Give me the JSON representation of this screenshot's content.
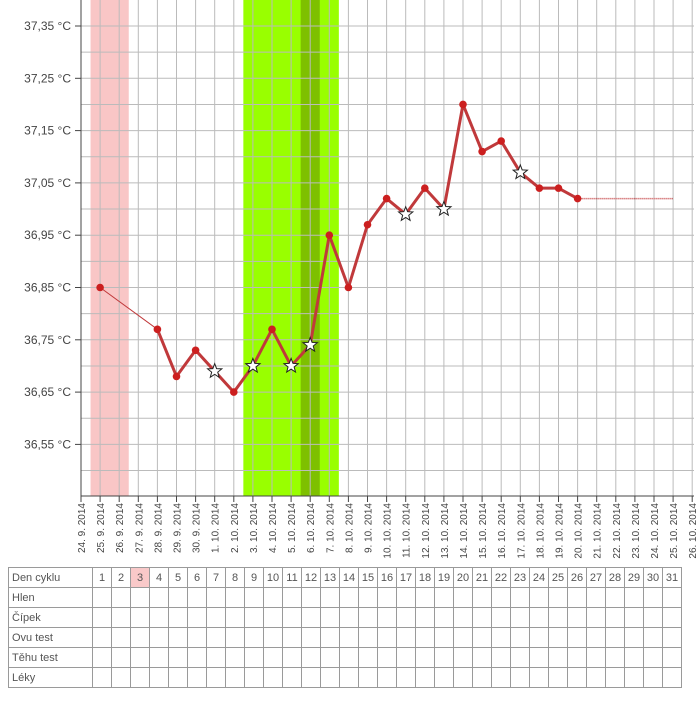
{
  "chart_data": {
    "type": "line",
    "y_tick_labels": [
      "37,35 °C",
      "37,25 °C",
      "37,15 °C",
      "37,05 °C",
      "36,95 °C",
      "36,85 °C",
      "36,75 °C",
      "36,65 °C",
      "36,55 °C"
    ],
    "ylim": [
      36.45,
      37.39
    ],
    "x_tick_labels": [
      "24. 9. 2014",
      "25. 9. 2014",
      "26. 9. 2014",
      "27. 9. 2014",
      "28. 9. 2014",
      "29. 9. 2014",
      "30. 9. 2014",
      "1. 10. 2014",
      "2. 10. 2014",
      "3. 10. 2014",
      "4. 10. 2014",
      "5. 10. 2014",
      "6. 10. 2014",
      "7. 10. 2014",
      "8. 10. 2014",
      "9. 10. 2014",
      "10. 10. 2014",
      "11. 10. 2014",
      "12. 10. 2014",
      "13. 10. 2014",
      "14. 10. 2014",
      "15. 10. 2014",
      "16. 10. 2014",
      "17. 10. 2014",
      "18. 10. 2014",
      "19. 10. 2014",
      "20. 10. 2014",
      "21. 10. 2014",
      "22. 10. 2014",
      "23. 10. 2014",
      "24. 10. 2014",
      "25. 10. 2014",
      "26. 10. 2014"
    ],
    "grid": true,
    "series": [
      {
        "points": [
          {
            "x": "25. 9. 2014",
            "y": 36.85,
            "marker": "dot"
          },
          {
            "x": "28. 9. 2014",
            "y": 36.77,
            "marker": "dot"
          },
          {
            "x": "29. 9. 2014",
            "y": 36.68,
            "marker": "dot"
          },
          {
            "x": "30. 9. 2014",
            "y": 36.73,
            "marker": "dot"
          },
          {
            "x": "1. 10. 2014",
            "y": 36.69,
            "marker": "star"
          },
          {
            "x": "2. 10. 2014",
            "y": 36.65,
            "marker": "dot"
          },
          {
            "x": "3. 10. 2014",
            "y": 36.7,
            "marker": "star"
          },
          {
            "x": "4. 10. 2014",
            "y": 36.77,
            "marker": "dot"
          },
          {
            "x": "5. 10. 2014",
            "y": 36.7,
            "marker": "star"
          },
          {
            "x": "6. 10. 2014",
            "y": 36.74,
            "marker": "star"
          },
          {
            "x": "7. 10. 2014",
            "y": 36.95,
            "marker": "dot"
          },
          {
            "x": "8. 10. 2014",
            "y": 36.85,
            "marker": "dot"
          },
          {
            "x": "9. 10. 2014",
            "y": 36.97,
            "marker": "dot"
          },
          {
            "x": "10. 10. 2014",
            "y": 37.02,
            "marker": "dot"
          },
          {
            "x": "11. 10. 2014",
            "y": 36.99,
            "marker": "star"
          },
          {
            "x": "12. 10. 2014",
            "y": 37.04,
            "marker": "dot"
          },
          {
            "x": "13. 10. 2014",
            "y": 37.0,
            "marker": "star"
          },
          {
            "x": "14. 10. 2014",
            "y": 37.2,
            "marker": "dot"
          },
          {
            "x": "15. 10. 2014",
            "y": 37.11,
            "marker": "dot"
          },
          {
            "x": "16. 10. 2014",
            "y": 37.13,
            "marker": "dot"
          },
          {
            "x": "17. 10. 2014",
            "y": 37.07,
            "marker": "star"
          },
          {
            "x": "18. 10. 2014",
            "y": 37.04,
            "marker": "dot"
          },
          {
            "x": "19. 10. 2014",
            "y": 37.04,
            "marker": "dot"
          },
          {
            "x": "20. 10. 2014",
            "y": 37.02,
            "marker": "dot"
          }
        ],
        "gap_segments": [
          [
            "25. 9. 2014",
            "28. 9. 2014"
          ]
        ],
        "projection": {
          "from": "20. 10. 2014",
          "to": "25. 10. 2014",
          "y": 37.02
        },
        "color": "#c0393b"
      }
    ],
    "bands": [
      {
        "from": "24. 9. 2014",
        "to": "26. 9. 2014",
        "color": "#f9c6c6"
      },
      {
        "from": "2. 10. 2014",
        "to": "7. 10. 2014",
        "color": "#99ff00"
      },
      {
        "from": "5. 10. 2014",
        "to": "6. 10. 2014",
        "color": "#7ec000"
      }
    ],
    "colors": {
      "line": "#c0393b",
      "dot": "#cc1f1f",
      "grid": "#bbbbbb",
      "axis": "#444444",
      "text": "#444444"
    }
  },
  "table": {
    "rows": [
      {
        "label": "Den cyklu",
        "cells": [
          "1",
          "2",
          "3",
          "4",
          "5",
          "6",
          "7",
          "8",
          "9",
          "10",
          "11",
          "12",
          "13",
          "14",
          "15",
          "16",
          "17",
          "18",
          "19",
          "20",
          "21",
          "22",
          "23",
          "24",
          "25",
          "26",
          "27",
          "28",
          "29",
          "30",
          "31"
        ]
      },
      {
        "label": "Hlen",
        "cells": []
      },
      {
        "label": "Čípek",
        "cells": []
      },
      {
        "label": "Ovu test",
        "cells": []
      },
      {
        "label": "Těhu test",
        "cells": []
      },
      {
        "label": "Léky",
        "cells": []
      }
    ],
    "highlight_day": "3",
    "highlight_color": "#f9c9c9"
  }
}
